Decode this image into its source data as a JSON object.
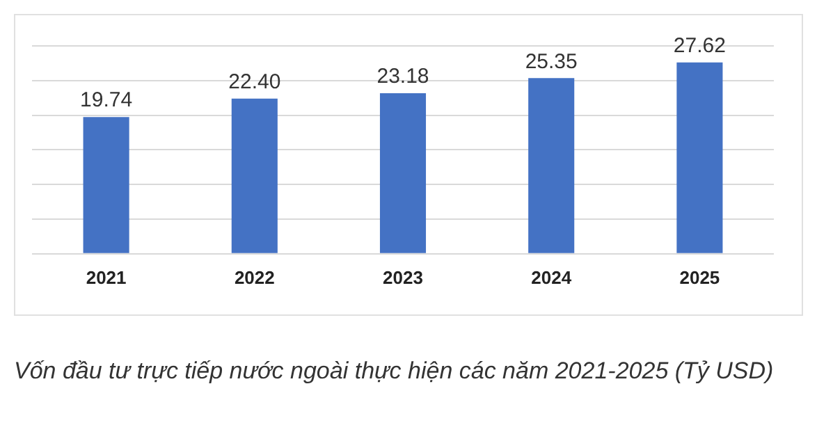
{
  "chart_data": {
    "type": "bar",
    "categories": [
      "2021",
      "2022",
      "2023",
      "2024",
      "2025"
    ],
    "values": [
      19.74,
      22.4,
      23.18,
      25.35,
      27.62
    ],
    "color": "#4472c4",
    "value_labels": [
      "19.74",
      "22.40",
      "23.18",
      "25.35",
      "27.62"
    ],
    "ylim": [
      0,
      30
    ],
    "yticks": [
      {
        "value": 0,
        "label": null
      },
      {
        "value": 5,
        "label": null
      },
      {
        "value": 10,
        "label": null
      },
      {
        "value": 15,
        "label": null
      },
      {
        "value": 20,
        "label": null
      },
      {
        "value": 25,
        "label": null
      },
      {
        "value": 30,
        "label": null
      }
    ],
    "grid": "y",
    "tick_labels": "x",
    "annotations": [
      "Vốn đầu tư trực tiếp nước ngoài thực hiện các năm 2021-2025 (Tỷ USD)"
    ]
  }
}
